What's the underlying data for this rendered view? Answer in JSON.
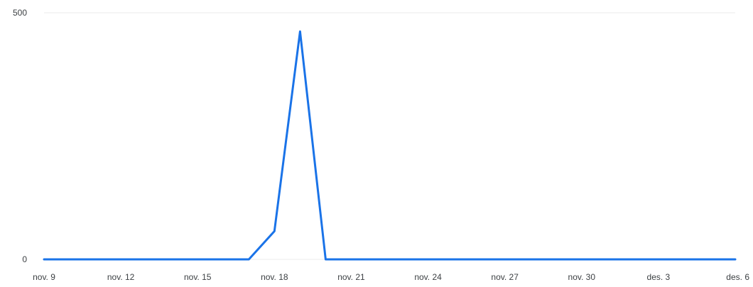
{
  "chart_data": {
    "type": "line",
    "title": "",
    "xlabel": "",
    "ylabel": "",
    "categories": [
      "nov. 9",
      "nov. 10",
      "nov. 11",
      "nov. 12",
      "nov. 13",
      "nov. 14",
      "nov. 15",
      "nov. 16",
      "nov. 17",
      "nov. 18",
      "nov. 19",
      "nov. 20",
      "nov. 21",
      "nov. 22",
      "nov. 23",
      "nov. 24",
      "nov. 25",
      "nov. 26",
      "nov. 27",
      "nov. 28",
      "nov. 29",
      "nov. 30",
      "des. 1",
      "des. 2",
      "des. 3",
      "des. 4",
      "des. 5",
      "des. 6"
    ],
    "x_tick_labels": [
      "nov. 9",
      "nov. 12",
      "nov. 15",
      "nov. 18",
      "nov. 21",
      "nov. 24",
      "nov. 27",
      "nov. 30",
      "des. 3",
      "des. 6"
    ],
    "y_tick_labels": [
      "0",
      "500"
    ],
    "ylim": [
      0,
      500
    ],
    "grid": true,
    "legend": "none",
    "series": [
      {
        "values": [
          0,
          0,
          0,
          0,
          0,
          0,
          0,
          0,
          0,
          57,
          462,
          0,
          0,
          0,
          0,
          0,
          0,
          0,
          0,
          0,
          0,
          0,
          0,
          0,
          0,
          0,
          0,
          0
        ],
        "color": "#1a73e8"
      }
    ]
  }
}
